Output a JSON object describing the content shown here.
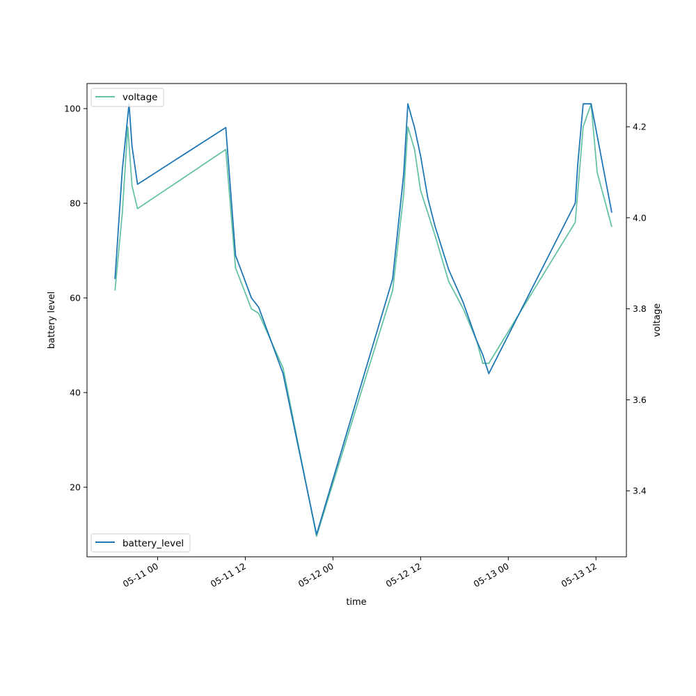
{
  "chart_data": {
    "type": "line",
    "xlabel": "time",
    "ylabel_left": "battery level",
    "ylabel_right": "voltage",
    "x_ticks": [
      "05-11 00",
      "05-11 12",
      "05-12 00",
      "05-12 12",
      "05-13 00",
      "05-13 12"
    ],
    "y_left_ticks": [
      "20",
      "40",
      "60",
      "80",
      "100"
    ],
    "y_right_ticks": [
      "3.4",
      "3.6",
      "3.8",
      "4.0",
      "4.2"
    ],
    "ylim_left": [
      5.3,
      105.3
    ],
    "ylim_right": [
      3.255,
      4.295
    ],
    "xlim": [
      "2021-05-10 14:20",
      "2021-05-13 16:10"
    ],
    "grid": false,
    "series": [
      {
        "name": "battery_level",
        "axis": "left",
        "color": "#1f77b4",
        "legend_position": "lower-left",
        "points": [
          [
            "2021-05-10 18:10",
            64
          ],
          [
            "2021-05-10 19:10",
            87
          ],
          [
            "2021-05-10 20:05",
            101
          ],
          [
            "2021-05-10 20:30",
            92
          ],
          [
            "2021-05-10 21:15",
            84
          ],
          [
            "2021-05-11 09:20",
            96
          ],
          [
            "2021-05-11 10:40",
            69
          ],
          [
            "2021-05-11 12:50",
            60
          ],
          [
            "2021-05-11 13:50",
            58
          ],
          [
            "2021-05-11 17:10",
            44
          ],
          [
            "2021-05-11 21:45",
            10
          ],
          [
            "2021-05-12 08:10",
            64
          ],
          [
            "2021-05-12 09:40",
            86
          ],
          [
            "2021-05-12 10:15",
            101
          ],
          [
            "2021-05-12 11:10",
            96
          ],
          [
            "2021-05-12 12:00",
            90
          ],
          [
            "2021-05-12 13:00",
            81
          ],
          [
            "2021-05-12 14:00",
            75
          ],
          [
            "2021-05-12 15:50",
            66
          ],
          [
            "2021-05-12 17:50",
            59
          ],
          [
            "2021-05-12 19:40",
            51
          ],
          [
            "2021-05-12 20:30",
            48
          ],
          [
            "2021-05-12 21:20",
            44
          ],
          [
            "2021-05-13 09:10",
            80
          ],
          [
            "2021-05-13 09:30",
            88
          ],
          [
            "2021-05-13 10:15",
            101
          ],
          [
            "2021-05-13 11:20",
            101
          ],
          [
            "2021-05-13 14:10",
            78
          ]
        ]
      },
      {
        "name": "voltage",
        "axis": "right",
        "color": "#66c2a5",
        "legend_position": "upper-left",
        "points": [
          [
            "2021-05-10 18:10",
            3.84
          ],
          [
            "2021-05-10 19:10",
            4.01
          ],
          [
            "2021-05-10 19:55",
            4.2
          ],
          [
            "2021-05-10 20:30",
            4.07
          ],
          [
            "2021-05-10 21:15",
            4.02
          ],
          [
            "2021-05-11 09:20",
            4.15
          ],
          [
            "2021-05-11 10:40",
            3.89
          ],
          [
            "2021-05-11 12:50",
            3.8
          ],
          [
            "2021-05-11 13:50",
            3.79
          ],
          [
            "2021-05-11 17:10",
            3.67
          ],
          [
            "2021-05-11 21:45",
            3.3
          ],
          [
            "2021-05-12 08:10",
            3.84
          ],
          [
            "2021-05-12 09:40",
            4.05
          ],
          [
            "2021-05-12 10:15",
            4.2
          ],
          [
            "2021-05-12 11:10",
            4.15
          ],
          [
            "2021-05-12 12:00",
            4.06
          ],
          [
            "2021-05-12 14:00",
            3.96
          ],
          [
            "2021-05-12 15:50",
            3.86
          ],
          [
            "2021-05-12 17:50",
            3.8
          ],
          [
            "2021-05-12 19:40",
            3.73
          ],
          [
            "2021-05-12 20:30",
            3.68
          ],
          [
            "2021-05-12 21:20",
            3.68
          ],
          [
            "2021-05-13 09:10",
            3.99
          ],
          [
            "2021-05-13 10:15",
            4.2
          ],
          [
            "2021-05-13 11:20",
            4.25
          ],
          [
            "2021-05-13 12:10",
            4.1
          ],
          [
            "2021-05-13 14:10",
            3.98
          ]
        ]
      }
    ]
  }
}
